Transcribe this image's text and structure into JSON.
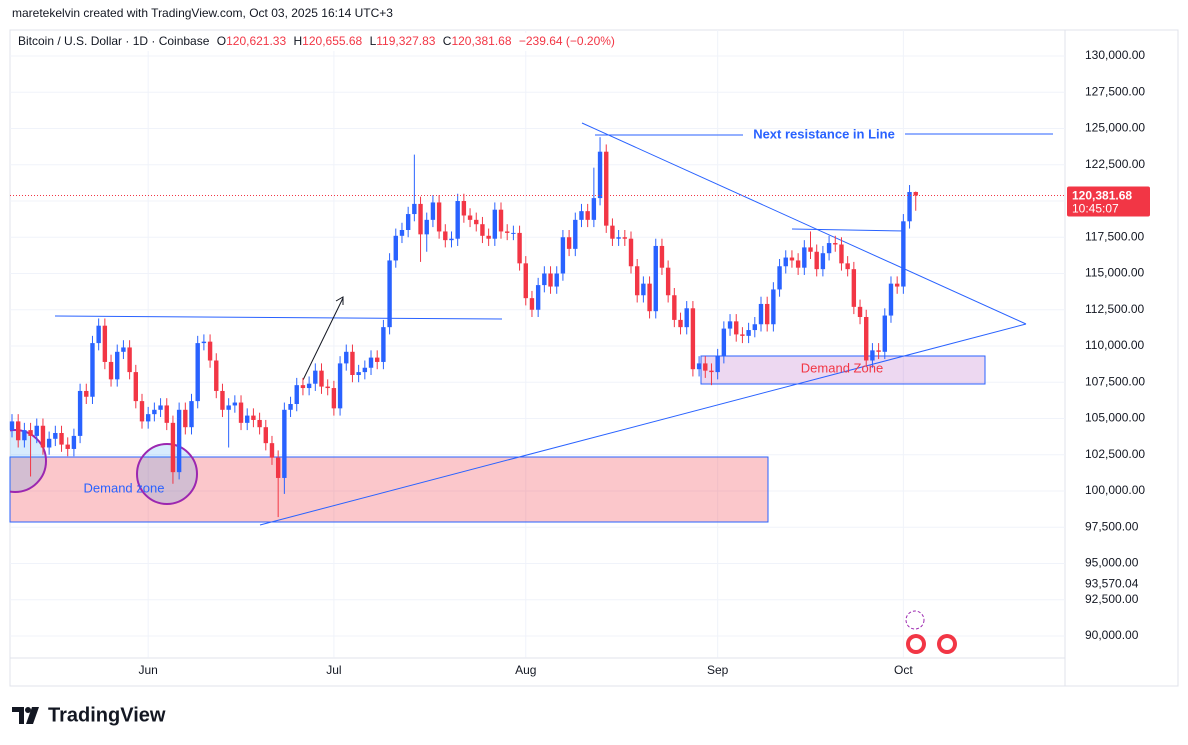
{
  "chart_data": {
    "type": "candlestick",
    "credit": "maretekelvin created with TradingView.com, Oct 03, 2025 16:14 UTC+3",
    "title": "Bitcoin / U.S. Dollar · 1D · Coinbase",
    "header": {
      "open_label": "O",
      "open": "120,621.33",
      "high_label": "H",
      "high": "120,655.68",
      "low_label": "L",
      "low": "119,327.83",
      "close_label": "C",
      "close": "120,381.68",
      "change": "−239.64 (−0.20%)"
    },
    "categories": [
      null,
      null,
      null,
      null,
      null,
      null,
      null,
      null,
      null,
      null,
      null,
      null,
      null,
      null,
      null,
      null,
      null,
      null,
      null,
      null,
      null,
      null,
      "Jun",
      null,
      null,
      null,
      null,
      null,
      null,
      null,
      null,
      null,
      null,
      null,
      null,
      null,
      null,
      null,
      null,
      null,
      null,
      null,
      null,
      null,
      null,
      null,
      null,
      null,
      null,
      null,
      null,
      null,
      "Jul",
      null,
      null,
      null,
      null,
      null,
      null,
      null,
      null,
      null,
      null,
      null,
      null,
      null,
      null,
      null,
      null,
      null,
      null,
      null,
      null,
      null,
      null,
      null,
      null,
      null,
      null,
      null,
      null,
      null,
      null,
      "Aug",
      null,
      null,
      null,
      null,
      null,
      null,
      null,
      null,
      null,
      null,
      null,
      null,
      null,
      null,
      null,
      null,
      null,
      null,
      null,
      null,
      null,
      null,
      null,
      null,
      null,
      null,
      null,
      null,
      null,
      null,
      "Sep",
      null,
      null,
      null,
      null,
      null,
      null,
      null,
      null,
      null,
      null,
      null,
      null,
      null,
      null,
      null,
      null,
      null,
      null,
      null,
      null,
      null,
      null,
      null,
      null,
      null,
      null,
      null,
      null,
      null,
      "Oct",
      null,
      null
    ],
    "open": [
      104200,
      104800,
      103500,
      104200,
      103800,
      104500,
      103000,
      103600,
      104000,
      103200,
      102900,
      103800,
      106900,
      106500,
      110200,
      111400,
      108900,
      107700,
      109600,
      109900,
      108200,
      106200,
      104800,
      105300,
      105600,
      105900,
      104700,
      101300,
      105600,
      104400,
      106200,
      110200,
      110300,
      109000,
      106900,
      105600,
      105900,
      106100,
      104700,
      105200,
      104900,
      104400,
      103300,
      102300,
      100900,
      105600,
      106000,
      107300,
      107100,
      107400,
      108300,
      107200,
      107100,
      105700,
      108800,
      109600,
      108000,
      108200,
      108500,
      109200,
      108900,
      111300,
      115900,
      117600,
      118000,
      119100,
      119800,
      117700,
      118700,
      119900,
      117900,
      117300,
      117400,
      120000,
      119000,
      118700,
      118400,
      117600,
      117400,
      119400,
      117900,
      117800,
      117800,
      115700,
      113300,
      112500,
      114200,
      115000,
      114100,
      115000,
      117500,
      116700,
      118700,
      119300,
      118700,
      120200,
      123400,
      118300,
      117400,
      117500,
      117400,
      115500,
      113500,
      114300,
      112400,
      116900,
      115400,
      113500,
      111800,
      111300,
      112600,
      108400,
      108800,
      108300,
      108200,
      109300,
      111200,
      111700,
      110800,
      110700,
      111100,
      111500,
      112900,
      111500,
      113900,
      115500,
      116100,
      115900,
      115400,
      116800,
      116500,
      115300,
      116400,
      117100,
      117000,
      115700,
      115300,
      112700,
      112000,
      109000,
      109700,
      109600,
      112100,
      114300,
      114100,
      118600,
      120621.33
    ],
    "high": [
      105300,
      105300,
      104700,
      104700,
      105000,
      105000,
      104100,
      104500,
      104500,
      103700,
      104300,
      107400,
      107400,
      110700,
      111900,
      111900,
      109400,
      110100,
      110400,
      110400,
      108700,
      106700,
      105800,
      106100,
      106400,
      106400,
      105200,
      106100,
      106100,
      106700,
      110700,
      110800,
      110800,
      109500,
      107400,
      106400,
      106600,
      106600,
      105700,
      105700,
      105400,
      104900,
      103800,
      102800,
      106100,
      106500,
      107800,
      107800,
      107900,
      108800,
      108800,
      107700,
      107600,
      109300,
      110100,
      110100,
      108700,
      109000,
      109700,
      109700,
      111800,
      116400,
      118100,
      118500,
      119600,
      123200,
      120300,
      119200,
      120400,
      120400,
      118400,
      117900,
      120500,
      120500,
      119500,
      119200,
      118900,
      118100,
      119900,
      119900,
      118400,
      118300,
      118300,
      116200,
      113800,
      114700,
      115500,
      115500,
      115500,
      118000,
      118000,
      119200,
      119800,
      119800,
      122300,
      124400,
      123900,
      118800,
      118000,
      118000,
      117900,
      116000,
      114800,
      114800,
      117400,
      117400,
      115900,
      114000,
      112300,
      113100,
      113100,
      109300,
      109300,
      108800,
      109800,
      111700,
      112200,
      112200,
      111300,
      111600,
      112000,
      113400,
      113400,
      114400,
      116000,
      116600,
      116600,
      116400,
      117300,
      117900,
      117000,
      116900,
      117600,
      117600,
      117500,
      116200,
      115800,
      113200,
      112500,
      110200,
      110200,
      112600,
      114800,
      114800,
      119100,
      121100,
      120655.68
    ],
    "low": [
      103700,
      103000,
      103000,
      101000,
      103300,
      102500,
      102500,
      103100,
      102700,
      102400,
      102400,
      103300,
      106000,
      106000,
      109700,
      108400,
      107200,
      107200,
      109100,
      107700,
      105700,
      104300,
      104300,
      104800,
      105100,
      104200,
      100500,
      100800,
      103900,
      103900,
      105700,
      109700,
      108500,
      106400,
      105100,
      103000,
      105400,
      104200,
      104200,
      104400,
      103900,
      102800,
      101800,
      98200,
      99800,
      105100,
      105500,
      106600,
      106600,
      106900,
      106700,
      106600,
      105200,
      105200,
      108300,
      107500,
      107500,
      107700,
      108000,
      108400,
      108400,
      110800,
      115400,
      117100,
      117500,
      118600,
      115800,
      116500,
      118200,
      117400,
      116800,
      116800,
      116900,
      118500,
      118200,
      117900,
      117100,
      116900,
      116900,
      117400,
      117300,
      117300,
      115200,
      112800,
      112000,
      112000,
      113700,
      113600,
      113600,
      114500,
      116200,
      116200,
      118200,
      118200,
      118200,
      119700,
      117800,
      116900,
      116900,
      116900,
      115000,
      113000,
      113000,
      111900,
      111900,
      114900,
      113000,
      111300,
      110800,
      110800,
      107900,
      107900,
      107800,
      107300,
      107700,
      108800,
      110700,
      110300,
      110200,
      110200,
      110600,
      111000,
      111000,
      111000,
      113400,
      115000,
      115400,
      114900,
      114900,
      116000,
      114800,
      114800,
      115900,
      116500,
      115200,
      114800,
      112200,
      111500,
      108600,
      108500,
      109100,
      109100,
      111600,
      113600,
      113600,
      118100,
      119327.83
    ],
    "close": [
      104800,
      103500,
      104200,
      103800,
      104500,
      103000,
      103600,
      104000,
      103200,
      102900,
      103800,
      106900,
      106500,
      110200,
      111400,
      108900,
      107700,
      109600,
      109900,
      108200,
      106200,
      104800,
      105300,
      105600,
      105900,
      104700,
      101300,
      105600,
      104400,
      106200,
      110200,
      110300,
      109000,
      106900,
      105600,
      105900,
      106100,
      104700,
      105200,
      104900,
      104400,
      103300,
      102300,
      100900,
      105600,
      106000,
      107300,
      107100,
      107400,
      108300,
      107200,
      107100,
      105700,
      108800,
      109600,
      108000,
      108200,
      108500,
      109200,
      108900,
      111300,
      115900,
      117600,
      118000,
      119100,
      119800,
      117700,
      118700,
      119900,
      117900,
      117300,
      117400,
      120000,
      119000,
      118700,
      118400,
      117600,
      117400,
      119400,
      117900,
      117800,
      117800,
      115700,
      113300,
      112500,
      114200,
      115000,
      114100,
      115000,
      117500,
      116700,
      118700,
      119300,
      118700,
      120200,
      123400,
      118300,
      117400,
      117500,
      117400,
      115500,
      113500,
      114300,
      112400,
      116900,
      115400,
      113500,
      111800,
      111300,
      112600,
      108400,
      108800,
      108300,
      108200,
      109300,
      111200,
      111700,
      110800,
      110700,
      111100,
      111500,
      112900,
      111500,
      113900,
      115500,
      116100,
      115900,
      115400,
      116800,
      116500,
      115300,
      116400,
      117100,
      117000,
      115700,
      115300,
      112700,
      112000,
      109000,
      109700,
      109600,
      112100,
      114300,
      114100,
      118600,
      120621.33,
      120381.68
    ],
    "up_color": "#2962ff",
    "down_color": "#f23645",
    "ylim": [
      88500,
      131000
    ],
    "yticks": [
      {
        "value": 90000,
        "label": "90,000.00"
      },
      {
        "value": 92500,
        "label": "92,500.00"
      },
      {
        "value": 95000,
        "label": "95,000.00"
      },
      {
        "value": 97500,
        "label": "97,500.00"
      },
      {
        "value": 100000,
        "label": "100,000.00"
      },
      {
        "value": 102500,
        "label": "102,500.00"
      },
      {
        "value": 105000,
        "label": "105,000.00"
      },
      {
        "value": 107500,
        "label": "107,500.00"
      },
      {
        "value": 110000,
        "label": "110,000.00"
      },
      {
        "value": 112500,
        "label": "112,500.00"
      },
      {
        "value": 115000,
        "label": "115,000.00"
      },
      {
        "value": 117500,
        "label": "117,500.00"
      },
      {
        "value": 120000,
        "label": "120,000.00"
      },
      {
        "value": 122500,
        "label": "122,500.00"
      },
      {
        "value": 125000,
        "label": "125,000.00"
      },
      {
        "value": 127500,
        "label": "127,500.00"
      },
      {
        "value": 130000,
        "label": "130,000.00"
      }
    ],
    "marker_label": {
      "value": 93570.04,
      "label": "93,570.04"
    },
    "price_label": {
      "value": 120381.68,
      "label": "120,381.68"
    },
    "countdown": "10:45:07",
    "grid": true,
    "annotations": {
      "resistance": "Next resistance in Line",
      "demand_low": "Demand zone",
      "demand_high": "Demand Zone"
    },
    "brand": "TradingView"
  }
}
